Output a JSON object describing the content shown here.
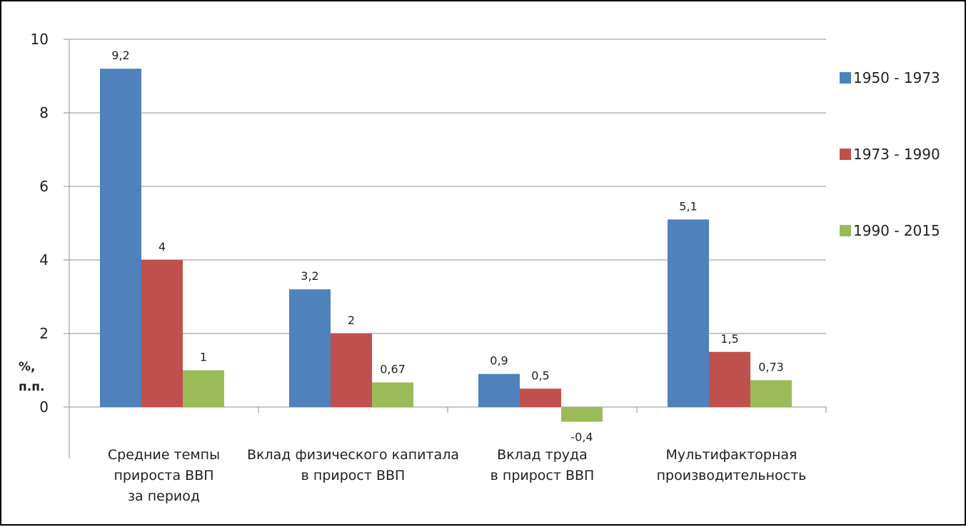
{
  "chart_data": {
    "type": "bar",
    "categories": [
      [
        "Средние темпы",
        "прироста ВВП",
        "за период"
      ],
      [
        "Вклад физического капитала",
        "в прирост ВВП"
      ],
      [
        "Вклад труда",
        "в прирост ВВП"
      ],
      [
        "Мультифакторная",
        "производительность"
      ]
    ],
    "series": [
      {
        "name": "1950 - 1973",
        "color": "#4f81bd",
        "values": [
          9.2,
          3.2,
          0.9,
          5.1
        ],
        "labels": [
          "9,2",
          "3,2",
          "0,9",
          "5,1"
        ]
      },
      {
        "name": "1973 - 1990",
        "color": "#c0504d",
        "values": [
          4,
          2,
          0.5,
          1.5
        ],
        "labels": [
          "4",
          "2",
          "0,5",
          "1,5"
        ]
      },
      {
        "name": "1990 - 2015",
        "color": "#9bbb59",
        "values": [
          1,
          0.67,
          -0.4,
          0.73
        ],
        "labels": [
          "1",
          "0,67",
          "-0,4",
          "0,73"
        ]
      }
    ],
    "y_ticks": [
      0,
      2,
      4,
      6,
      8,
      10
    ],
    "ylim": [
      -1.4,
      10
    ],
    "ylabel_lines": [
      "%,",
      "п.п."
    ],
    "grid": true,
    "legend_position": "right"
  }
}
